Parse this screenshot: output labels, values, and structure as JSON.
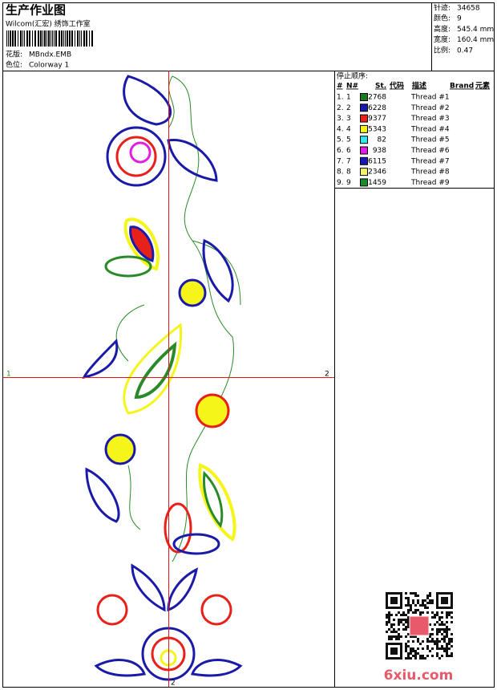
{
  "header": {
    "title": "生产作业图",
    "company": "Wilcom(汇宏) 绣饰工作室",
    "design_label": "花版:",
    "design": "MBndx.EMB",
    "colorway_label": "色位:",
    "colorway": "Colorway 1"
  },
  "info": [
    {
      "label": "针迹:",
      "value": "34658"
    },
    {
      "label": "颜色:",
      "value": "9"
    },
    {
      "label": "高度:",
      "value": "545.4 mm"
    },
    {
      "label": "宽度:",
      "value": "160.4 mm"
    },
    {
      "label": "比例:",
      "value": "0.47"
    }
  ],
  "stop_sequence": {
    "title": "停止顺序:",
    "columns": [
      "#",
      "N#",
      "St.",
      "代码",
      "描述",
      "Brand",
      "元素"
    ],
    "rows": [
      {
        "index": "1.",
        "number": "1",
        "color": "#1a7a1a",
        "code": "2768",
        "description": "Thread #1"
      },
      {
        "index": "2.",
        "number": "2",
        "color": "#1a1aa8",
        "code": "6228",
        "description": "Thread #2"
      },
      {
        "index": "3.",
        "number": "3",
        "color": "#e8201a",
        "code": "9377",
        "description": "Thread #3"
      },
      {
        "index": "4.",
        "number": "4",
        "color": "#f5f51a",
        "code": "5343",
        "description": "Thread #4"
      },
      {
        "index": "5.",
        "number": "5",
        "color": "#30e8f0",
        "code": "82",
        "description": "Thread #5"
      },
      {
        "index": "6.",
        "number": "6",
        "color": "#e020e0",
        "code": "938",
        "description": "Thread #6"
      },
      {
        "index": "7.",
        "number": "7",
        "color": "#1818b8",
        "code": "6115",
        "description": "Thread #7"
      },
      {
        "index": "8.",
        "number": "8",
        "color": "#f8f070",
        "code": "2346",
        "description": "Thread #8"
      },
      {
        "index": "9.",
        "number": "9",
        "color": "#1a8a2a",
        "code": "1459",
        "description": "Thread #9"
      }
    ]
  },
  "crosshair": {
    "left": "1",
    "right": "2",
    "bottom": "2"
  },
  "watermark": "6xiu.com"
}
